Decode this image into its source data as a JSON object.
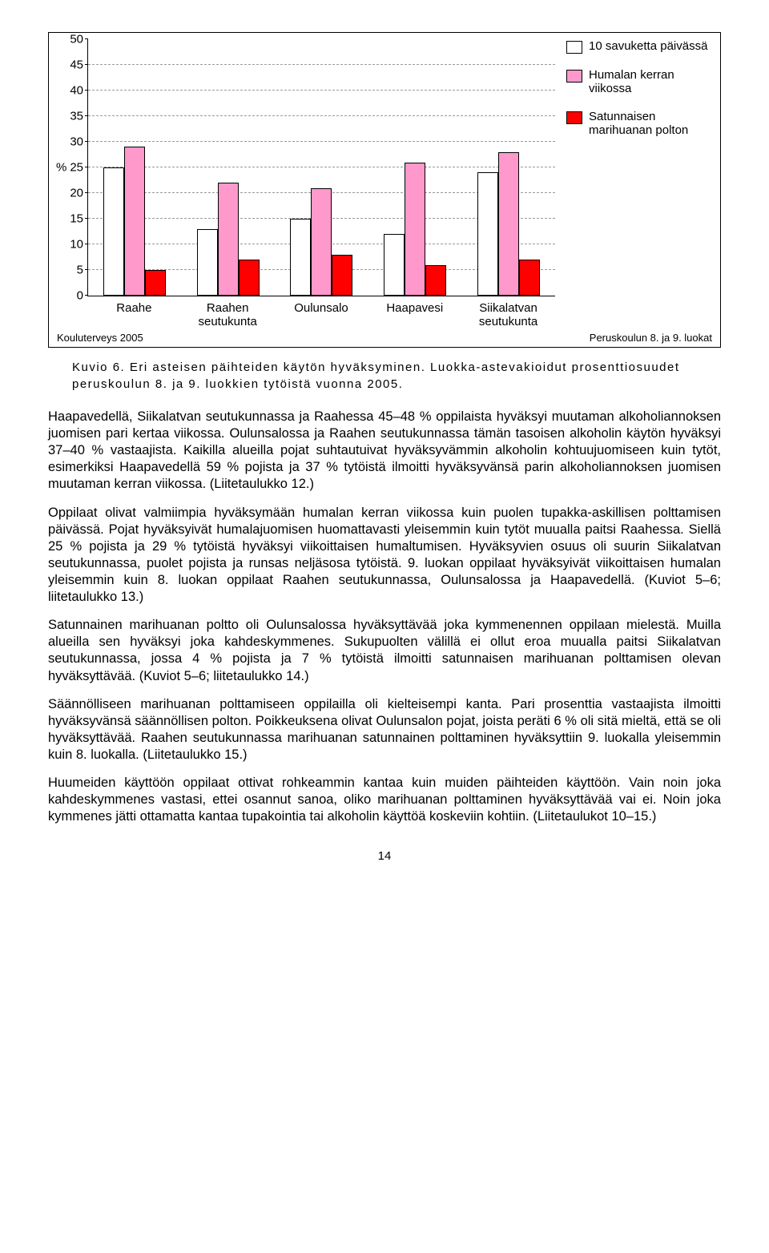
{
  "chart": {
    "type": "bar",
    "ylim": [
      0,
      50
    ],
    "ytick_step": 5,
    "y_axis_center_label": "%",
    "categories": [
      "Raahe",
      "Raahen seutukunta",
      "Oulunsalo",
      "Haapavesi",
      "Siikalatvan seutukunta"
    ],
    "series": [
      {
        "name": "10 savuketta päivässä",
        "color": "#ffffff",
        "values": [
          25,
          13,
          15,
          12,
          24
        ]
      },
      {
        "name": "Humalan kerran viikossa",
        "color": "#ff99cc",
        "values": [
          29,
          22,
          21,
          26,
          28
        ]
      },
      {
        "name": "Satunnaisen marihuanan polton",
        "color": "#ff0000",
        "values": [
          5,
          7,
          8,
          6,
          7
        ]
      }
    ],
    "grid_color": "#999999",
    "background_color": "#ffffff",
    "footer_left": "Kouluterveys 2005",
    "footer_right": "Peruskoulun 8. ja 9. luokat"
  },
  "caption": "Kuvio 6. Eri asteisen päihteiden käytön hyväksyminen. Luokka-astevakioidut prosenttiosuudet peruskoulun 8. ja 9. luokkien tytöistä vuonna 2005.",
  "paragraphs": [
    "Haapavedellä, Siikalatvan seutukunnassa ja Raahessa 45–48 % oppilaista hyväksyi muutaman alkoholiannoksen juomisen pari kertaa viikossa. Oulunsalossa ja Raahen seutukunnassa tämän tasoisen alkoholin käytön hyväksyi 37–40 % vastaajista. Kaikilla alueilla pojat suhtautuivat hyväksyvämmin alkoholin kohtuujuomiseen kuin tytöt, esimerkiksi Haapavedellä 59 % pojista ja 37 % tytöistä ilmoitti hyväksyvänsä parin alkoholiannoksen juomisen muutaman kerran viikossa. (Liitetaulukko 12.)",
    "Oppilaat olivat valmiimpia hyväksymään humalan kerran viikossa kuin puolen tupakka-askillisen polttamisen päivässä. Pojat hyväksyivät humalajuomisen huomattavasti yleisemmin kuin tytöt muualla paitsi Raahessa. Siellä 25 % pojista ja 29 % tytöistä hyväksyi viikoittaisen humaltumisen. Hyväksyvien osuus oli suurin Siikalatvan seutukunnassa, puolet pojista ja runsas neljäsosa tytöistä. 9. luokan oppilaat hyväksyivät viikoittaisen humalan yleisemmin kuin 8. luokan oppilaat Raahen seutukunnassa, Oulunsalossa ja Haapavedellä. (Kuviot 5–6; liitetaulukko 13.)",
    "Satunnainen marihuanan poltto oli Oulunsalossa hyväksyttävää joka kymmenennen oppilaan mielestä. Muilla alueilla sen hyväksyi joka kahdeskymmenes. Sukupuolten välillä ei ollut eroa muualla paitsi Siikalatvan seutukunnassa, jossa 4 % pojista ja 7 % tytöistä ilmoitti satunnaisen marihuanan polttamisen olevan hyväksyttävää. (Kuviot 5–6; liitetaulukko 14.)",
    "Säännölliseen marihuanan polttamiseen oppilailla oli kielteisempi kanta. Pari prosenttia vastaajista ilmoitti hyväksyvänsä säännöllisen polton. Poikkeuksena olivat Oulunsalon pojat, joista peräti 6 % oli sitä mieltä, että se oli hyväksyttävää. Raahen seutukunnassa marihuanan satunnainen polttaminen hyväksyttiin 9. luokalla yleisemmin kuin 8. luokalla. (Liitetaulukko 15.)",
    "Huumeiden käyttöön oppilaat ottivat rohkeammin kantaa kuin muiden päihteiden käyttöön. Vain noin joka kahdeskymmenes vastasi, ettei osannut sanoa, oliko marihuanan polttaminen hyväksyttävää vai ei. Noin joka kymmenes jätti ottamatta kantaa tupakointia tai alkoholin käyttöä koskeviin kohtiin. (Liitetaulukot 10–15.)"
  ],
  "page_number": "14"
}
